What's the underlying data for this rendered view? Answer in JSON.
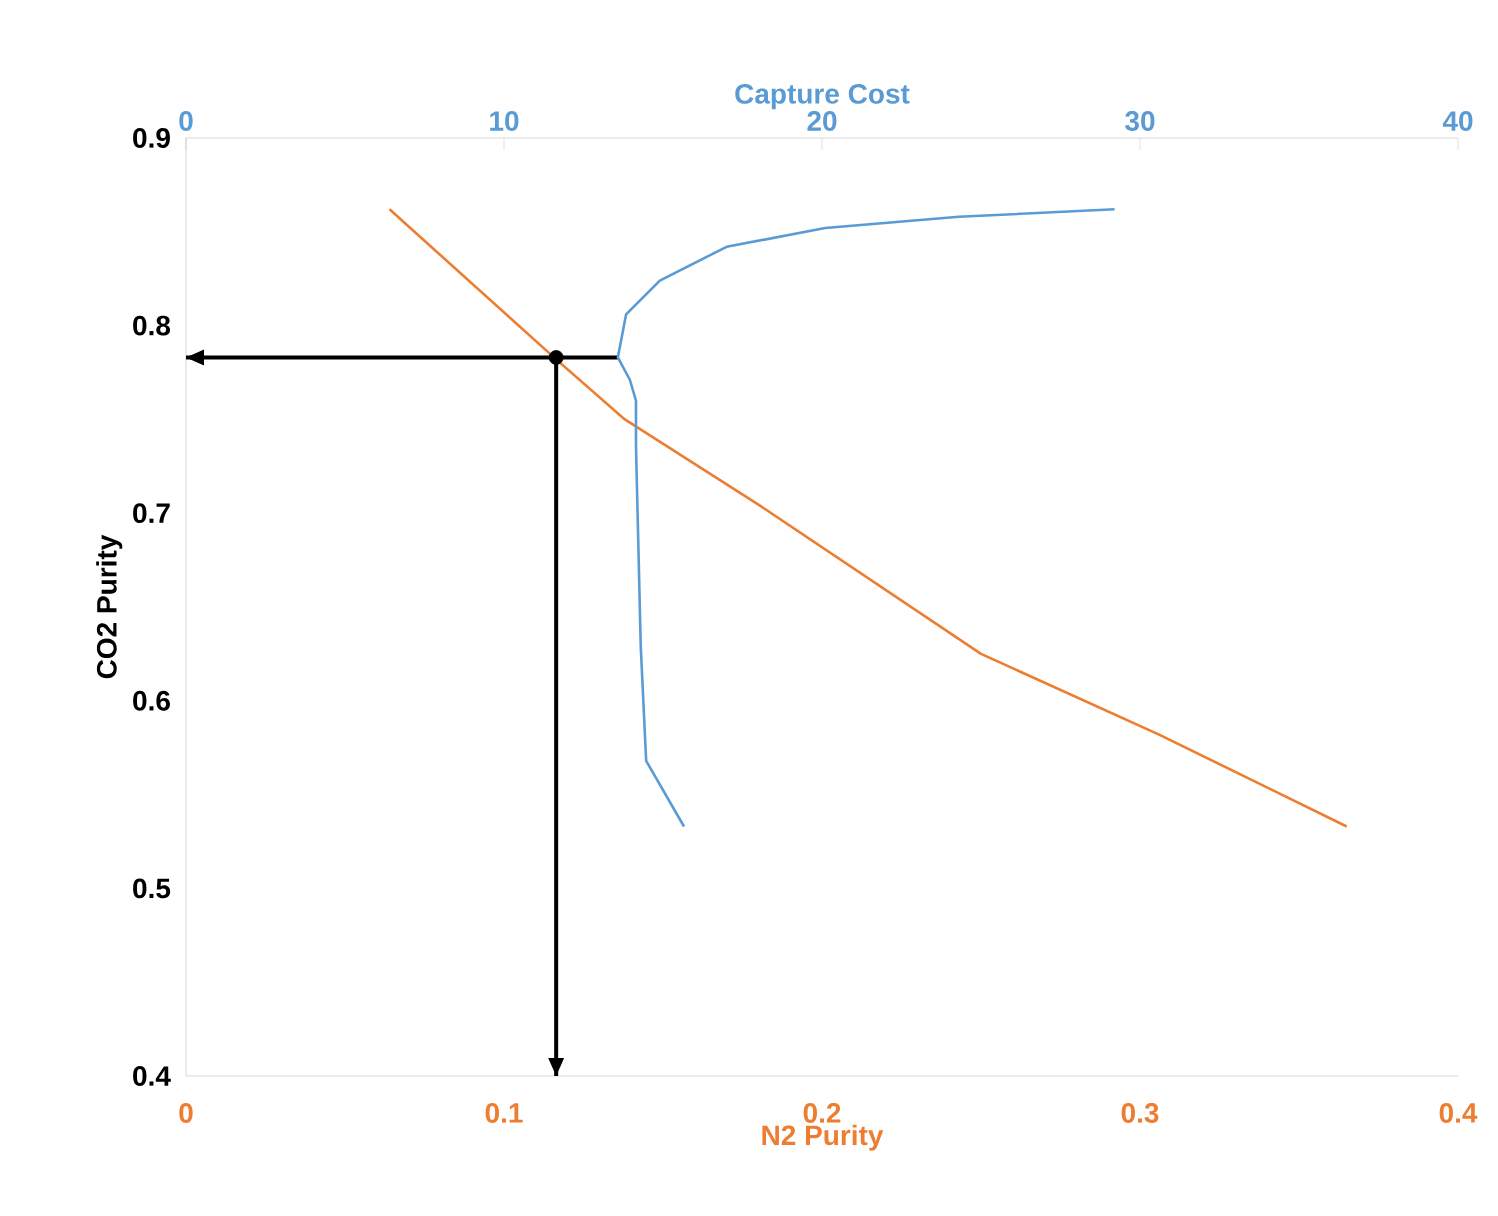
{
  "chart_data": {
    "type": "line",
    "xlabel": "N2 Purity",
    "x2label": "Capture Cost",
    "ylabel": "CO2 Purity",
    "xlim": [
      0,
      0.4
    ],
    "xticks": [
      0,
      0.1,
      0.2,
      0.3,
      0.4
    ],
    "x2lim": [
      0,
      40
    ],
    "x2ticks": [
      0,
      10,
      20,
      30,
      40
    ],
    "ylim": [
      0.4,
      0.9
    ],
    "yticks": [
      0.4,
      0.5,
      0.6,
      0.7,
      0.8,
      0.9
    ],
    "series": [
      {
        "color": "#ed7d31",
        "x": [
          0.064,
          0.1164,
          0.138,
          0.1805,
          0.25,
          0.306,
          0.365
        ],
        "values": [
          0.862,
          0.782,
          0.75,
          0.704,
          0.625,
          0.582,
          0.533
        ]
      },
      {
        "color": "#5b9bd5",
        "axis": "x2",
        "x": [
          15.66,
          14.47,
          14.3,
          14.15,
          14.15,
          13.96,
          13.58,
          13.84,
          14.9,
          17.0,
          20.1,
          24.3,
          29.2
        ],
        "values": [
          0.533,
          0.568,
          0.629,
          0.736,
          0.76,
          0.771,
          0.783,
          0.806,
          0.824,
          0.842,
          0.852,
          0.858,
          0.862
        ]
      },
      {
        "color": "#000000",
        "x": [
          0.136,
          0.0
        ],
        "values": [
          0.783,
          0.783
        ]
      },
      {
        "color": "#000000",
        "x": [
          0.1164,
          0.1164
        ],
        "values": [
          0.783,
          0.4
        ]
      },
      {
        "type": "scatter",
        "color": "#000000",
        "marker": "circle",
        "x": [
          0.1164
        ],
        "values": [
          0.783
        ]
      }
    ]
  }
}
